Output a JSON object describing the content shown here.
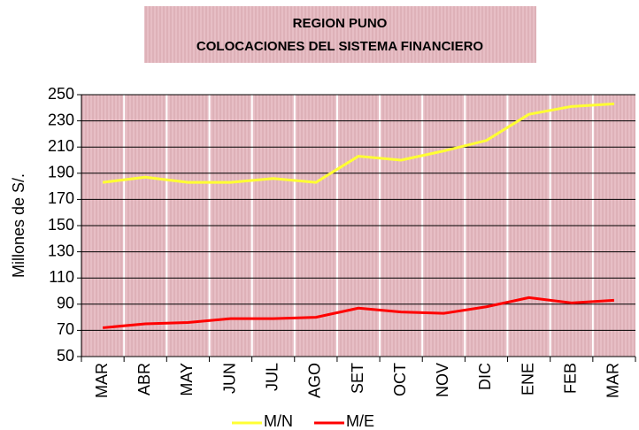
{
  "chart_data": {
    "type": "line",
    "title": "REGION PUNO",
    "subtitle": "COLOCACIONES DEL SISTEMA FINANCIERO",
    "y_label": "Millones de S/.",
    "categories": [
      "MAR",
      "ABR",
      "MAY",
      "JUN",
      "JUL",
      "AGO",
      "SET",
      "OCT",
      "NOV",
      "DIC",
      "ENE",
      "FEB",
      "MAR"
    ],
    "series": [
      {
        "name": "M/N",
        "color": "#ffff33",
        "values": [
          183,
          187,
          183,
          183,
          186,
          183,
          203,
          200,
          207,
          215,
          235,
          241,
          243
        ]
      },
      {
        "name": "M/E",
        "color": "#ff0000",
        "values": [
          72,
          75,
          76,
          79,
          79,
          80,
          87,
          84,
          83,
          88,
          95,
          91,
          93
        ]
      }
    ],
    "ylim": [
      50,
      250
    ],
    "yticks": [
      50,
      70,
      90,
      110,
      130,
      150,
      170,
      190,
      210,
      230,
      250
    ],
    "grid": true
  }
}
